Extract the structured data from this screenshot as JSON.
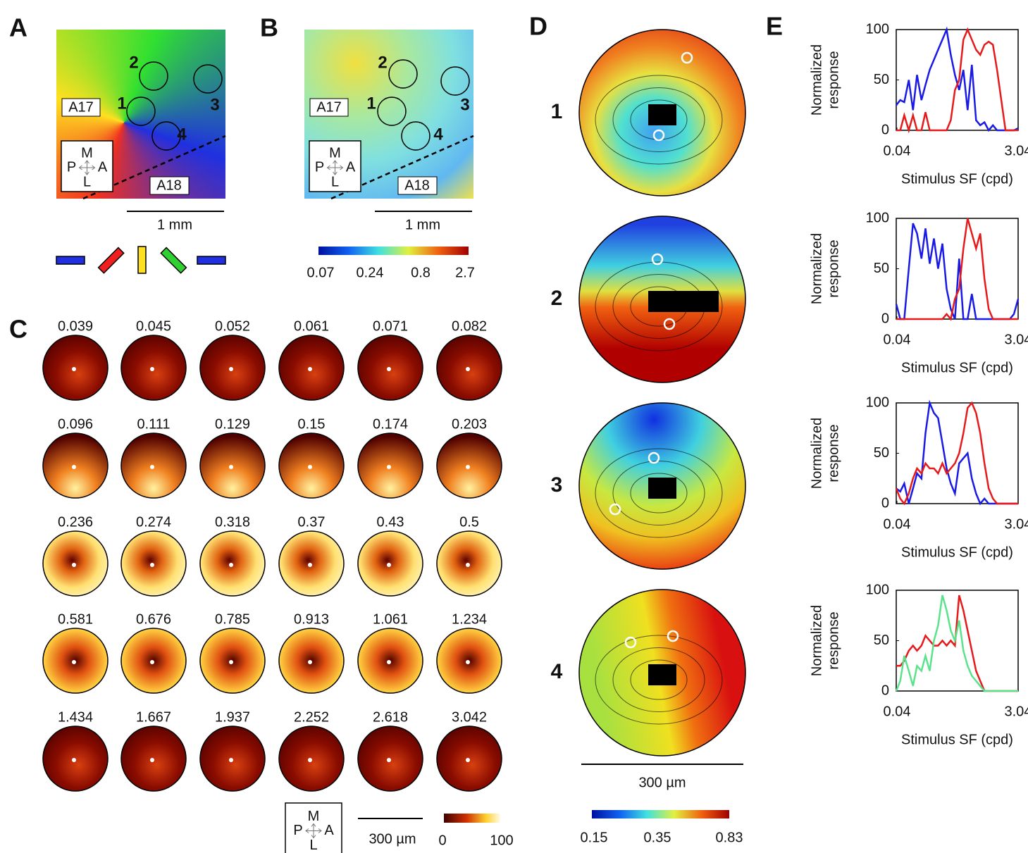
{
  "panels": {
    "letters": [
      "A",
      "B",
      "C",
      "D",
      "E"
    ],
    "A": {
      "areas": [
        "A17",
        "A18"
      ],
      "sites": [
        "1",
        "2",
        "3",
        "4"
      ],
      "compass": [
        "M",
        "P",
        "A",
        "L"
      ],
      "scale": "1 mm"
    },
    "B": {
      "areas": [
        "A17",
        "A18"
      ],
      "sites": [
        "1",
        "2",
        "3",
        "4"
      ],
      "compass": [
        "M",
        "P",
        "A",
        "L"
      ],
      "scale": "1 mm",
      "colorbar": [
        "0.07",
        "0.24",
        "0.8",
        "2.7"
      ]
    },
    "C": {
      "sf_labels": [
        "0.039",
        "0.045",
        "0.052",
        "0.061",
        "0.071",
        "0.082",
        "0.096",
        "0.111",
        "0.129",
        "0.15",
        "0.174",
        "0.203",
        "0.236",
        "0.274",
        "0.318",
        "0.37",
        "0.43",
        "0.5",
        "0.581",
        "0.676",
        "0.785",
        "0.913",
        "1.061",
        "1.234",
        "1.434",
        "1.667",
        "1.937",
        "2.252",
        "2.618",
        "3.042"
      ],
      "compass": [
        "M",
        "P",
        "A",
        "L"
      ],
      "scale": "300 µm",
      "colorbar": [
        "0",
        "100"
      ]
    },
    "D": {
      "rows": [
        "1",
        "2",
        "3",
        "4"
      ],
      "scale": "300 µm",
      "colorbar": [
        "0.15",
        "0.35",
        "0.83"
      ]
    }
  },
  "chart_data": [
    {
      "type": "line",
      "xlabel": "Stimulus SF (cpd)",
      "ylabel": [
        "Normalized",
        "response"
      ],
      "xscale": "log",
      "x": [
        0.039,
        0.045,
        0.052,
        0.061,
        0.071,
        0.082,
        0.096,
        0.111,
        0.129,
        0.15,
        0.174,
        0.203,
        0.236,
        0.274,
        0.318,
        0.37,
        0.43,
        0.5,
        0.581,
        0.676,
        0.785,
        0.913,
        1.061,
        1.234,
        1.434,
        1.667,
        1.937,
        2.252,
        2.618,
        3.042
      ],
      "xlim": [
        0.039,
        3.042
      ],
      "xticks": [
        0.04,
        3.04
      ],
      "ylim": [
        0,
        100
      ],
      "yticks": [
        0,
        50,
        100
      ],
      "series": [
        {
          "color": "#1a1ae6",
          "values": [
            25,
            30,
            28,
            50,
            20,
            55,
            30,
            45,
            60,
            70,
            80,
            90,
            100,
            75,
            55,
            40,
            60,
            20,
            65,
            10,
            5,
            8,
            0,
            5,
            0,
            0,
            0,
            0,
            0,
            2
          ]
        },
        {
          "color": "#e61a1a",
          "values": [
            0,
            0,
            15,
            0,
            15,
            0,
            0,
            18,
            0,
            0,
            0,
            0,
            0,
            10,
            40,
            50,
            90,
            100,
            90,
            80,
            75,
            85,
            88,
            85,
            60,
            30,
            0,
            0,
            0,
            0
          ]
        }
      ]
    },
    {
      "type": "line",
      "xlabel": "Stimulus SF (cpd)",
      "ylabel": [
        "Normalized",
        "response"
      ],
      "xscale": "log",
      "x": [
        0.039,
        0.045,
        0.052,
        0.061,
        0.071,
        0.082,
        0.096,
        0.111,
        0.129,
        0.15,
        0.174,
        0.203,
        0.236,
        0.274,
        0.318,
        0.37,
        0.43,
        0.5,
        0.581,
        0.676,
        0.785,
        0.913,
        1.061,
        1.234,
        1.434,
        1.667,
        1.937,
        2.252,
        2.618,
        3.042
      ],
      "xlim": [
        0.039,
        3.042
      ],
      "xticks": [
        0.04,
        3.04
      ],
      "ylim": [
        0,
        100
      ],
      "yticks": [
        0,
        50,
        100
      ],
      "series": [
        {
          "color": "#1a1ae6",
          "values": [
            15,
            0,
            0,
            50,
            95,
            85,
            60,
            90,
            55,
            80,
            50,
            75,
            30,
            10,
            0,
            60,
            0,
            0,
            25,
            0,
            0,
            0,
            0,
            0,
            0,
            0,
            0,
            0,
            5,
            20
          ]
        },
        {
          "color": "#e61a1a",
          "values": [
            0,
            0,
            0,
            0,
            0,
            0,
            0,
            0,
            0,
            0,
            0,
            0,
            5,
            0,
            20,
            30,
            70,
            100,
            85,
            70,
            85,
            40,
            10,
            0,
            0,
            0,
            0,
            0,
            0,
            0
          ]
        }
      ]
    },
    {
      "type": "line",
      "xlabel": "Stimulus SF (cpd)",
      "ylabel": [
        "Normalized",
        "response"
      ],
      "xscale": "log",
      "x": [
        0.039,
        0.045,
        0.052,
        0.061,
        0.071,
        0.082,
        0.096,
        0.111,
        0.129,
        0.15,
        0.174,
        0.203,
        0.236,
        0.274,
        0.318,
        0.37,
        0.43,
        0.5,
        0.581,
        0.676,
        0.785,
        0.913,
        1.061,
        1.234,
        1.434,
        1.667,
        1.937,
        2.252,
        2.618,
        3.042
      ],
      "xlim": [
        0.039,
        3.042
      ],
      "xticks": [
        0.04,
        3.04
      ],
      "ylim": [
        0,
        100
      ],
      "yticks": [
        0,
        50,
        100
      ],
      "series": [
        {
          "color": "#1a1ae6",
          "values": [
            15,
            12,
            20,
            0,
            15,
            30,
            25,
            70,
            100,
            90,
            85,
            60,
            35,
            20,
            10,
            40,
            45,
            50,
            25,
            10,
            0,
            5,
            0,
            0,
            0,
            0,
            0,
            0,
            0,
            0
          ]
        },
        {
          "color": "#e61a1a",
          "values": [
            15,
            5,
            0,
            10,
            25,
            35,
            30,
            40,
            35,
            35,
            30,
            40,
            30,
            35,
            40,
            50,
            70,
            95,
            100,
            90,
            70,
            40,
            15,
            5,
            0,
            0,
            0,
            0,
            0,
            0
          ]
        }
      ]
    },
    {
      "type": "line",
      "xlabel": "Stimulus SF (cpd)",
      "ylabel": [
        "Normalized",
        "response"
      ],
      "xscale": "log",
      "x": [
        0.039,
        0.045,
        0.052,
        0.061,
        0.071,
        0.082,
        0.096,
        0.111,
        0.129,
        0.15,
        0.174,
        0.203,
        0.236,
        0.274,
        0.318,
        0.37,
        0.43,
        0.5,
        0.581,
        0.676,
        0.785,
        0.913,
        1.061,
        1.234,
        1.434,
        1.667,
        1.937,
        2.252,
        2.618,
        3.042
      ],
      "xlim": [
        0.039,
        3.042
      ],
      "xticks": [
        0.04,
        3.04
      ],
      "ylim": [
        0,
        100
      ],
      "yticks": [
        0,
        50,
        100
      ],
      "series": [
        {
          "color": "#e61a1a",
          "values": [
            25,
            25,
            30,
            40,
            45,
            40,
            45,
            55,
            50,
            45,
            45,
            50,
            45,
            50,
            45,
            95,
            80,
            60,
            40,
            20,
            10,
            0,
            0,
            0,
            0,
            0,
            0,
            0,
            0,
            0
          ]
        },
        {
          "color": "#5be38c",
          "values": [
            0,
            10,
            35,
            20,
            5,
            25,
            20,
            35,
            20,
            50,
            65,
            95,
            80,
            60,
            50,
            70,
            40,
            25,
            15,
            10,
            5,
            0,
            0,
            0,
            0,
            0,
            0,
            0,
            0,
            0
          ]
        }
      ]
    }
  ]
}
